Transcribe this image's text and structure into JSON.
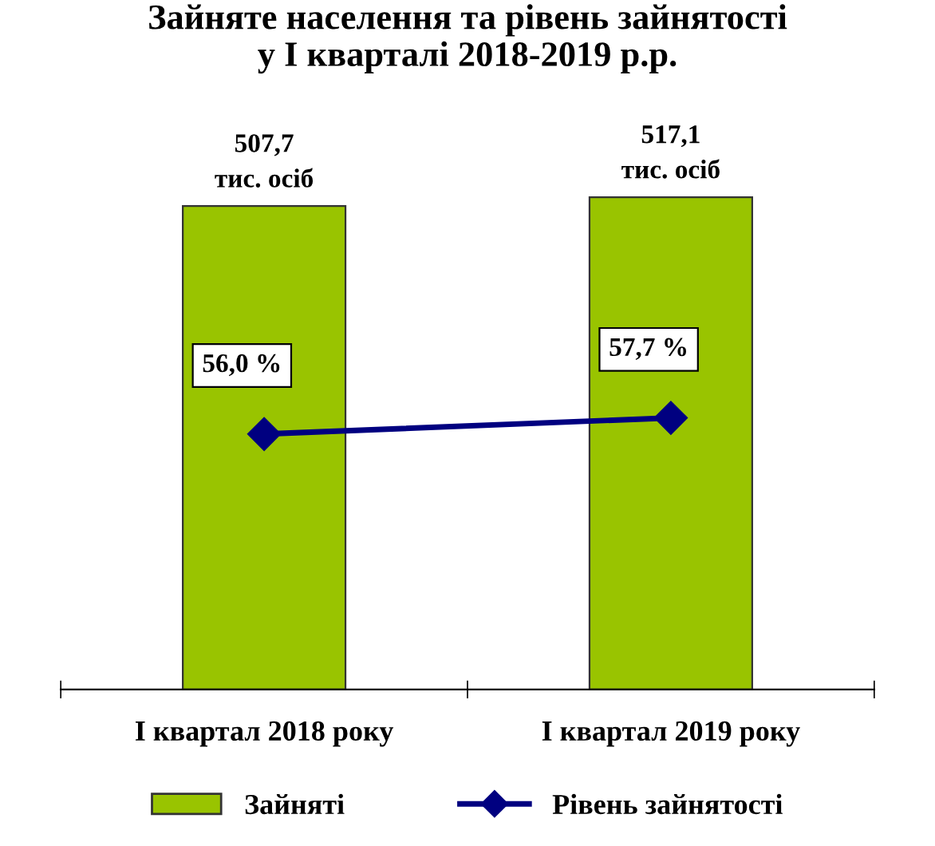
{
  "chart_data": {
    "type": "bar",
    "title": "Зайняте населення та рівень зайнятості\nу І кварталі 2018-2019 р.р.",
    "categories": [
      "І квартал 2018 року",
      "І квартал 2019 року"
    ],
    "series": [
      {
        "name": "Зайняті",
        "color": "#99c400",
        "values": [
          507.7,
          517.1
        ],
        "value_labels": [
          "507,7\nтис. осіб",
          "517,1\nтис. осіб"
        ]
      },
      {
        "name": "Рівень зайнятості",
        "type": "line",
        "axis": "y2",
        "color": "#000080",
        "values": [
          56.0,
          57.7
        ],
        "value_labels": [
          "56,0 %",
          "57,7 %"
        ]
      }
    ],
    "marker": "diamond",
    "legend": "bottom",
    "tick_labels": "x"
  }
}
